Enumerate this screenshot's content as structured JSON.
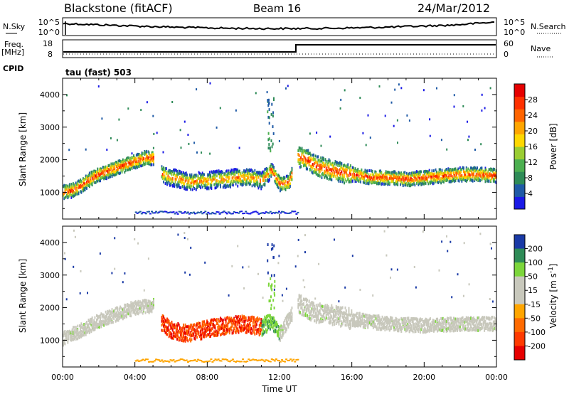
{
  "header": {
    "station": "Blackstone (fitACF)",
    "beam": "Beam 16",
    "date": "24/Mar/2012"
  },
  "top_panels": {
    "nsky_label": "N.Sky",
    "nsky_ticks": [
      "10^5",
      "10^0"
    ],
    "nsearch_label": "N.Search",
    "nsearch_ticks": [
      "10^5",
      "10^0"
    ],
    "freq_label": "Freq.",
    "freq_unit": "[MHz]",
    "freq_ticks": [
      "18",
      "8"
    ],
    "nave_label": "Nave",
    "nave_ticks": [
      "60",
      "0"
    ],
    "cpid_label": "CPID",
    "cpid_value": "tau (fast) 503"
  },
  "colors": {
    "power_scale": [
      "#1a1ae6",
      "#1f5aa6",
      "#2e8b57",
      "#4caf50",
      "#9acd32",
      "#ffd700",
      "#ffa500",
      "#ff6400",
      "#ff3000",
      "#e60000"
    ],
    "velocity_scale": [
      "#1a3aa6",
      "#2e8b57",
      "#7cd63b",
      "#c8c8bc",
      "#c8c8bc",
      "#ffa500",
      "#ff6a00",
      "#ff3a00",
      "#e60000"
    ]
  },
  "chart_data": [
    {
      "type": "heatmap",
      "title": "",
      "xlabel": "Time UT",
      "ylabel": "Slant Range [km]",
      "x_ticks": [
        "00:00",
        "04:00",
        "08:00",
        "12:00",
        "16:00",
        "20:00",
        "00:00"
      ],
      "xlim": [
        0,
        24
      ],
      "y_ticks": [
        "1000",
        "2000",
        "3000",
        "4000"
      ],
      "ylim": [
        180,
        4500
      ],
      "colorbar_label": "Power [dB]",
      "colorbar_ticks": [
        "4",
        "8",
        "12",
        "16",
        "20",
        "24",
        "28"
      ],
      "colorbar_range": [
        0,
        32
      ],
      "echo_band_center_km": [
        [
          0.0,
          1000
        ],
        [
          0.5,
          1050
        ],
        [
          1.0,
          1200
        ],
        [
          1.5,
          1400
        ],
        [
          2.0,
          1550
        ],
        [
          2.5,
          1650
        ],
        [
          3.0,
          1750
        ],
        [
          3.5,
          1850
        ],
        [
          4.0,
          1950
        ],
        [
          4.5,
          2050
        ],
        [
          5.0,
          2050
        ],
        [
          5.5,
          1550
        ],
        [
          6.0,
          1450
        ],
        [
          6.5,
          1400
        ],
        [
          7.0,
          1300
        ],
        [
          7.5,
          1350
        ],
        [
          8.0,
          1350
        ],
        [
          8.5,
          1400
        ],
        [
          9.0,
          1400
        ],
        [
          9.5,
          1450
        ],
        [
          10.0,
          1450
        ],
        [
          10.5,
          1450
        ],
        [
          11.0,
          1350
        ],
        [
          11.5,
          1700
        ],
        [
          12.0,
          1250
        ],
        [
          12.5,
          1300
        ],
        [
          13.0,
          2100
        ],
        [
          13.5,
          2000
        ],
        [
          14.0,
          1800
        ],
        [
          15.0,
          1650
        ],
        [
          16.0,
          1550
        ],
        [
          17.0,
          1450
        ],
        [
          18.0,
          1450
        ],
        [
          19.0,
          1400
        ],
        [
          20.0,
          1450
        ],
        [
          21.0,
          1500
        ],
        [
          22.0,
          1550
        ],
        [
          23.0,
          1550
        ],
        [
          24.0,
          1500
        ]
      ]
    },
    {
      "type": "heatmap",
      "title": "",
      "xlabel": "Time UT",
      "ylabel": "Slant Range [km]",
      "x_ticks": [
        "00:00",
        "04:00",
        "08:00",
        "12:00",
        "16:00",
        "20:00",
        "00:00"
      ],
      "xlim": [
        0,
        24
      ],
      "y_ticks": [
        "1000",
        "2000",
        "3000",
        "4000"
      ],
      "ylim": [
        180,
        4500
      ],
      "colorbar_label": "Velocity [m s^-1]",
      "colorbar_ticks": [
        "200",
        "100",
        "50",
        "15",
        "-15",
        "-50",
        "-100",
        "-200"
      ],
      "colorbar_range": [
        -250,
        250
      ],
      "echo_band_center_km": [
        [
          0.0,
          1050
        ],
        [
          1.0,
          1300
        ],
        [
          2.0,
          1600
        ],
        [
          3.0,
          1800
        ],
        [
          4.0,
          2000
        ],
        [
          5.0,
          2050
        ],
        [
          5.5,
          1500
        ],
        [
          6.0,
          1300
        ],
        [
          7.0,
          1200
        ],
        [
          8.0,
          1350
        ],
        [
          9.0,
          1450
        ],
        [
          10.0,
          1500
        ],
        [
          11.0,
          1400
        ],
        [
          11.5,
          1600
        ],
        [
          12.0,
          1200
        ],
        [
          13.0,
          2100
        ],
        [
          14.0,
          1850
        ],
        [
          16.0,
          1650
        ],
        [
          18.0,
          1500
        ],
        [
          20.0,
          1450
        ],
        [
          22.0,
          1500
        ],
        [
          24.0,
          1500
        ]
      ],
      "flow_periods": [
        {
          "start": 0.0,
          "end": 5.0,
          "velocity": "-15 to 15"
        },
        {
          "start": 5.5,
          "end": 7.0,
          "velocity": "-100 to -200"
        },
        {
          "start": 7.0,
          "end": 10.8,
          "velocity": "-100 to -200"
        },
        {
          "start": 11.0,
          "end": 12.0,
          "velocity": "15 to 50"
        },
        {
          "start": 12.0,
          "end": 13.0,
          "velocity": "-15 to 15"
        },
        {
          "start": 13.0,
          "end": 24.0,
          "velocity": "-15 to 15"
        }
      ]
    }
  ]
}
